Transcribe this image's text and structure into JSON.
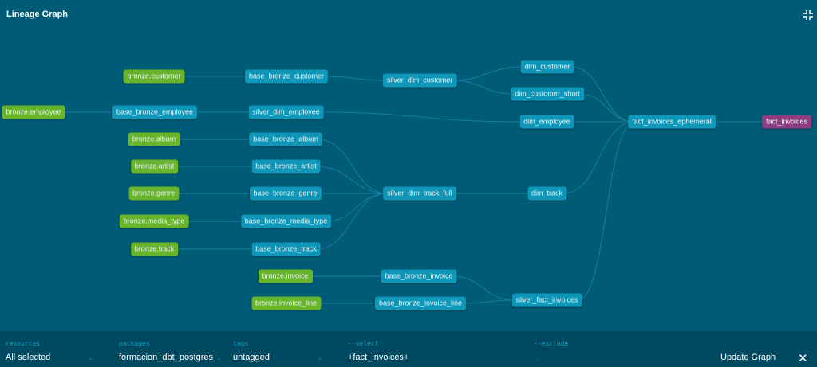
{
  "header": {
    "title": "Lineage Graph",
    "collapse_icon": "collapse-icon"
  },
  "colors": {
    "background": "#005b76",
    "source": "#68b52b",
    "model": "#0f97b9",
    "exposure": "#8e3e80",
    "bar": "#004a61"
  },
  "nodes": [
    {
      "id": "bronze.customer",
      "type": "source"
    },
    {
      "id": "bronze.employee",
      "type": "source"
    },
    {
      "id": "bronze.album",
      "type": "source"
    },
    {
      "id": "bronze.artist",
      "type": "source"
    },
    {
      "id": "bronze.genre",
      "type": "source"
    },
    {
      "id": "bronze.media_type",
      "type": "source"
    },
    {
      "id": "bronze.track",
      "type": "source"
    },
    {
      "id": "bronze.invoice",
      "type": "source"
    },
    {
      "id": "bronze.invoice_line",
      "type": "source"
    },
    {
      "id": "base_bronze_customer",
      "type": "model"
    },
    {
      "id": "base_bronze_employee",
      "type": "model"
    },
    {
      "id": "silver_dim_employee",
      "type": "model"
    },
    {
      "id": "base_bronze_album",
      "type": "model"
    },
    {
      "id": "base_bronze_artist",
      "type": "model"
    },
    {
      "id": "base_bronze_genre",
      "type": "model"
    },
    {
      "id": "base_bronze_media_type",
      "type": "model"
    },
    {
      "id": "base_bronze_track",
      "type": "model"
    },
    {
      "id": "base_bronze_invoice",
      "type": "model"
    },
    {
      "id": "base_bronze_invoice_line",
      "type": "model"
    },
    {
      "id": "silver_dim_customer",
      "type": "model"
    },
    {
      "id": "silver_dim_track_full",
      "type": "model"
    },
    {
      "id": "silver_fact_invoices",
      "type": "model"
    },
    {
      "id": "dim_customer",
      "type": "model"
    },
    {
      "id": "dim_customer_short",
      "type": "model"
    },
    {
      "id": "dim_employee",
      "type": "model"
    },
    {
      "id": "dim_track",
      "type": "model"
    },
    {
      "id": "fact_invoices_ephemeral",
      "type": "model"
    },
    {
      "id": "fact_invoices",
      "type": "exposure"
    }
  ],
  "edges": [
    [
      "bronze.customer",
      "base_bronze_customer"
    ],
    [
      "bronze.employee",
      "base_bronze_employee"
    ],
    [
      "base_bronze_employee",
      "silver_dim_employee"
    ],
    [
      "bronze.album",
      "base_bronze_album"
    ],
    [
      "bronze.artist",
      "base_bronze_artist"
    ],
    [
      "bronze.genre",
      "base_bronze_genre"
    ],
    [
      "bronze.media_type",
      "base_bronze_media_type"
    ],
    [
      "bronze.track",
      "base_bronze_track"
    ],
    [
      "bronze.invoice",
      "base_bronze_invoice"
    ],
    [
      "bronze.invoice_line",
      "base_bronze_invoice_line"
    ],
    [
      "base_bronze_customer",
      "silver_dim_customer"
    ],
    [
      "base_bronze_album",
      "silver_dim_track_full"
    ],
    [
      "base_bronze_artist",
      "silver_dim_track_full"
    ],
    [
      "base_bronze_genre",
      "silver_dim_track_full"
    ],
    [
      "base_bronze_media_type",
      "silver_dim_track_full"
    ],
    [
      "base_bronze_track",
      "silver_dim_track_full"
    ],
    [
      "base_bronze_invoice",
      "silver_fact_invoices"
    ],
    [
      "base_bronze_invoice_line",
      "silver_fact_invoices"
    ],
    [
      "silver_dim_customer",
      "dim_customer"
    ],
    [
      "silver_dim_customer",
      "dim_customer_short"
    ],
    [
      "silver_dim_employee",
      "dim_employee"
    ],
    [
      "silver_dim_track_full",
      "dim_track"
    ],
    [
      "dim_customer",
      "fact_invoices_ephemeral"
    ],
    [
      "dim_customer_short",
      "fact_invoices_ephemeral"
    ],
    [
      "dim_employee",
      "fact_invoices_ephemeral"
    ],
    [
      "dim_track",
      "fact_invoices_ephemeral"
    ],
    [
      "silver_fact_invoices",
      "fact_invoices_ephemeral"
    ],
    [
      "fact_invoices_ephemeral",
      "fact_invoices"
    ]
  ],
  "filters": {
    "resources": {
      "label": "resources",
      "value": "All selected"
    },
    "packages": {
      "label": "packages",
      "value": "formacion_dbt_postgres"
    },
    "tags": {
      "label": "tags",
      "value": "untagged"
    },
    "select": {
      "label": "--select",
      "value": "+fact_invoices+"
    },
    "exclude": {
      "label": "--exclude",
      "value": "..."
    },
    "update_label": "Update Graph",
    "close_icon": "close-icon"
  }
}
